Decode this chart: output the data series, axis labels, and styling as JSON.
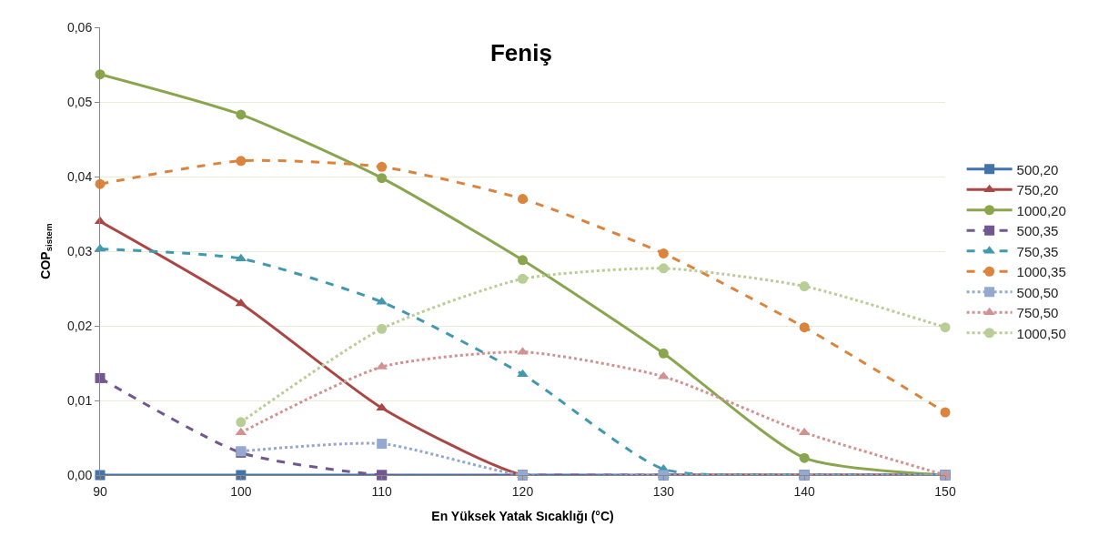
{
  "chart_data": {
    "type": "line",
    "title": "Feniş",
    "xlabel": "En Yüksek Yatak Sıcaklığı (°C)",
    "ylabel": "COP$_{sistem}$",
    "x": [
      90,
      100,
      110,
      120,
      130,
      140,
      150
    ],
    "xlim": [
      90,
      150
    ],
    "xticks": [
      90,
      100,
      110,
      120,
      130,
      140,
      150
    ],
    "ylim": [
      0,
      0.06
    ],
    "yticks": [
      {
        "value": 0,
        "label": "0,00"
      },
      {
        "value": 0.01,
        "label": "0,01"
      },
      {
        "value": 0.02,
        "label": "0,02"
      },
      {
        "value": 0.03,
        "label": "0,03"
      },
      {
        "value": 0.04,
        "label": "0,04"
      },
      {
        "value": 0.05,
        "label": "0,05"
      },
      {
        "value": 0.06,
        "label": "0,06"
      }
    ],
    "grid": "y",
    "legend": "right",
    "series": [
      {
        "name": "500,20",
        "color": "#4572a7",
        "marker": "square",
        "line_style": "solid",
        "values": [
          0,
          0,
          0,
          0,
          0,
          0,
          0
        ]
      },
      {
        "name": "750,20",
        "color": "#aa4643",
        "marker": "triangle",
        "line_style": "solid",
        "values": [
          0.034,
          0.023,
          0.009,
          0,
          0,
          0,
          0
        ]
      },
      {
        "name": "1000,20",
        "color": "#89a54e",
        "marker": "circle",
        "line_style": "solid",
        "values": [
          0.0537,
          0.0483,
          0.0398,
          0.0288,
          0.0163,
          0.0023,
          0
        ]
      },
      {
        "name": "500,35",
        "color": "#71588f",
        "marker": "square",
        "line_style": "dashed",
        "values": [
          0.013,
          0.003,
          0,
          0,
          0,
          0,
          0
        ]
      },
      {
        "name": "750,35",
        "color": "#4198af",
        "marker": "triangle",
        "line_style": "dashed",
        "values": [
          0.0303,
          0.029,
          0.0232,
          0.0135,
          0.0008,
          0,
          0
        ]
      },
      {
        "name": "1000,35",
        "color": "#db843d",
        "marker": "circle",
        "line_style": "dashed",
        "values": [
          0.039,
          0.0421,
          0.0413,
          0.037,
          0.0297,
          0.0198,
          0.0084
        ]
      },
      {
        "name": "500,50",
        "color": "#93a9cf",
        "marker": "square",
        "line_style": "dotted",
        "values": [
          null,
          0.0032,
          0.0042,
          0,
          0,
          0,
          0
        ]
      },
      {
        "name": "750,50",
        "color": "#d19392",
        "marker": "triangle",
        "line_style": "dotted",
        "values": [
          null,
          0.0057,
          0.0145,
          0.0165,
          0.0132,
          0.0057,
          0
        ]
      },
      {
        "name": "1000,50",
        "color": "#b9cd96",
        "marker": "circle",
        "line_style": "dotted",
        "values": [
          null,
          0.0071,
          0.0196,
          0.0263,
          0.0277,
          0.0253,
          0.0198
        ]
      }
    ]
  }
}
